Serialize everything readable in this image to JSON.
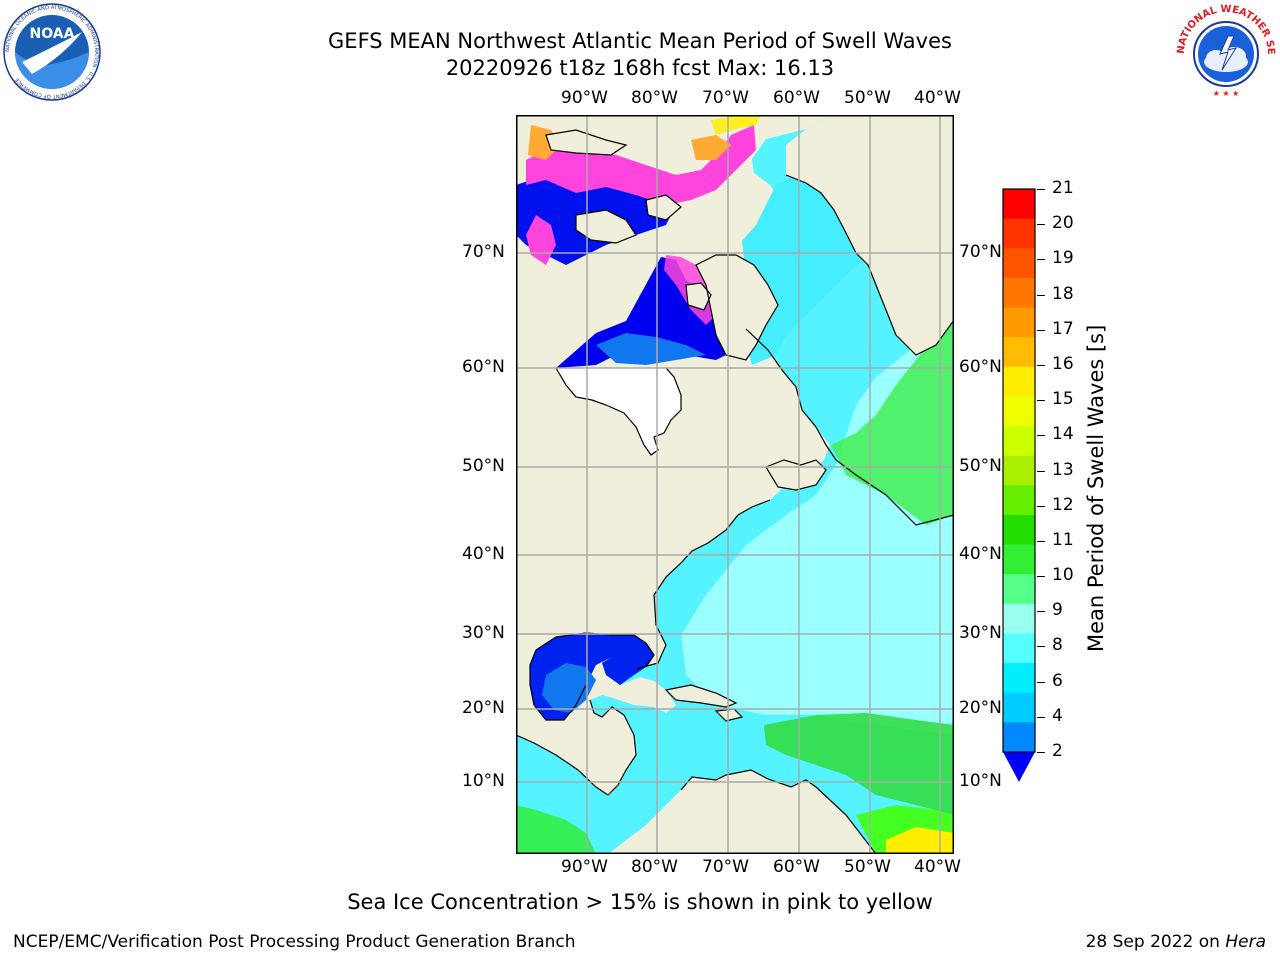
{
  "title": "GEFS MEAN Northwest Atlantic Mean Period of Swell Waves",
  "subtitle": "20220926 t18z 168h fcst    Max: 16.13",
  "lon_labels": [
    "90°W",
    "80°W",
    "70°W",
    "60°W",
    "50°W",
    "40°W"
  ],
  "lat_labels": [
    "70°N",
    "60°N",
    "50°N",
    "40°N",
    "30°N",
    "20°N",
    "10°N"
  ],
  "colorbar": {
    "label": "Mean Period of Swell Waves [s]",
    "ticks": [
      "21",
      "20",
      "19",
      "18",
      "17",
      "16",
      "15",
      "14",
      "13",
      "12",
      "11",
      "10",
      "9",
      "8",
      "6",
      "4",
      "2"
    ],
    "colors": [
      "#ff0000",
      "#ff3300",
      "#ff5500",
      "#ff7700",
      "#ff9900",
      "#ffbb00",
      "#ffee00",
      "#eeff00",
      "#ccff00",
      "#aaee00",
      "#66ee00",
      "#22dd00",
      "#33ee33",
      "#55ff88",
      "#99ffee",
      "#55ffff",
      "#00eeff",
      "#00ccff",
      "#0088ff"
    ],
    "extend_color": "#0000ff"
  },
  "colors": {
    "land": "#efefdc",
    "ocean_light": "#99ffff",
    "ocean_mid": "#44eeff",
    "ocean_blue": "#1188ff",
    "ocean_deep": "#0000ee",
    "green": "#33ee44",
    "green_bright": "#44ff22",
    "ice_pink": "#ff44dd",
    "ice_orange": "#ffaa33",
    "ice_yellow": "#ffee22",
    "grid": "#aaaaaa"
  },
  "logos": {
    "left": "NOAA",
    "left_ring": "NATIONAL OCEANIC AND ATMOSPHERIC ADMINISTRATION · U.S. DEPARTMENT OF COMMERCE",
    "right_ring": "NATIONAL WEATHER SERVICE"
  },
  "footer_note": "Sea Ice Concentration > 15% is shown in pink to yellow",
  "credit": "NCEP/EMC/Verification Post Processing Product Generation Branch",
  "date_text": "28 Sep 2022 on ",
  "date_host": "Hera"
}
